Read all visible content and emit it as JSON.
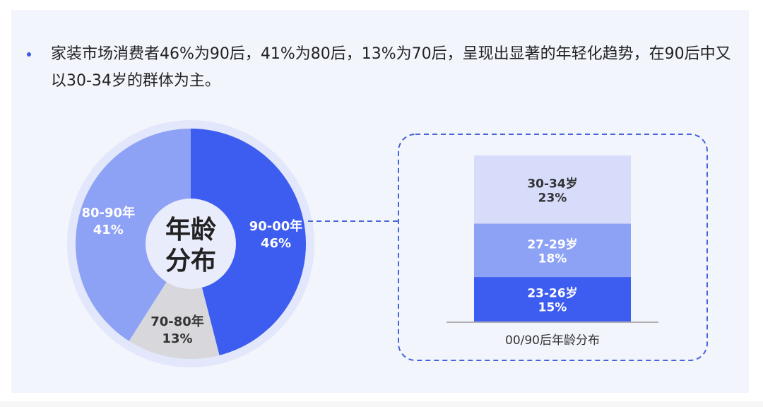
{
  "description": {
    "text": "家装市场消费者46%为90后，41%为80后，13%为70后，呈现出显著的年轻化趋势，在90后中又以30-34岁的群体为主。"
  },
  "chart_data": [
    {
      "type": "pie",
      "title": "年龄分布",
      "title_lines": [
        "年龄",
        "分布"
      ],
      "slices": [
        {
          "label": "90-00年",
          "value": 46,
          "value_label": "46%",
          "color": "#3d5cf0",
          "text_color": "#ffffff"
        },
        {
          "label": "70-80年",
          "value": 13,
          "value_label": "13%",
          "color": "#d8d8dc",
          "text_color": "#333333"
        },
        {
          "label": "80-90年",
          "value": 41,
          "value_label": "41%",
          "color": "#8ea2f5",
          "text_color": "#ffffff"
        }
      ]
    },
    {
      "type": "bar",
      "xlabel": "00/90后年龄分布",
      "segments": [
        {
          "label": "23-26岁",
          "value": 15,
          "value_label": "15%",
          "color": "#3d5cf0",
          "text_color": "#ffffff"
        },
        {
          "label": "27-29岁",
          "value": 18,
          "value_label": "18%",
          "color": "#8ea2f5",
          "text_color": "#ffffff"
        },
        {
          "label": "30-34岁",
          "value": 23,
          "value_label": "23%",
          "color": "#d6dcfa",
          "text_color": "#333333"
        }
      ]
    }
  ],
  "colors": {
    "accent": "#3d5cf0",
    "dashed_border": "#4565d8",
    "ring_bg": "#e2e7fb",
    "center_bg": "#e9ecfb"
  }
}
